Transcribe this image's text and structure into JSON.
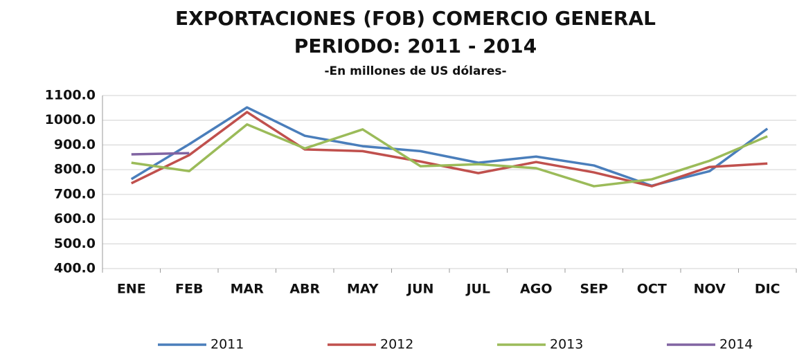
{
  "chart_data": {
    "type": "line",
    "title": "EXPORTACIONES (FOB) COMERCIO GENERAL",
    "title2": "PERIODO: 2011 - 2014",
    "subtitle": "-En millones de US dólares-",
    "categories": [
      "ENE",
      "FEB",
      "MAR",
      "ABR",
      "MAY",
      "JUN",
      "JUL",
      "AGO",
      "SEP",
      "OCT",
      "NOV",
      "DIC"
    ],
    "series": [
      {
        "name": "2011",
        "color": "#4a7ebb",
        "values": [
          762,
          903,
          1052,
          937,
          895,
          875,
          828,
          853,
          817,
          735,
          794,
          966
        ]
      },
      {
        "name": "2012",
        "color": "#c0504d",
        "values": [
          745,
          859,
          1033,
          882,
          875,
          833,
          786,
          831,
          789,
          733,
          811,
          825
        ]
      },
      {
        "name": "2013",
        "color": "#9bbb59",
        "values": [
          828,
          794,
          983,
          886,
          963,
          814,
          822,
          806,
          733,
          761,
          836,
          935
        ]
      },
      {
        "name": "2014",
        "color": "#8064a2",
        "values": [
          862,
          867,
          null,
          null,
          null,
          null,
          null,
          null,
          null,
          null,
          null,
          null
        ]
      }
    ],
    "ylim": [
      400,
      1100
    ],
    "yticks": [
      {
        "value": 400,
        "label": "400.0"
      },
      {
        "value": 500,
        "label": "500.0"
      },
      {
        "value": 600,
        "label": "600.0"
      },
      {
        "value": 700,
        "label": "700.0"
      },
      {
        "value": 800,
        "label": "800.0"
      },
      {
        "value": 900,
        "label": "900.0"
      },
      {
        "value": 1000,
        "label": "1000.0"
      },
      {
        "value": 1100,
        "label": "1100.0"
      }
    ],
    "grid": true,
    "legend": "bottom"
  }
}
